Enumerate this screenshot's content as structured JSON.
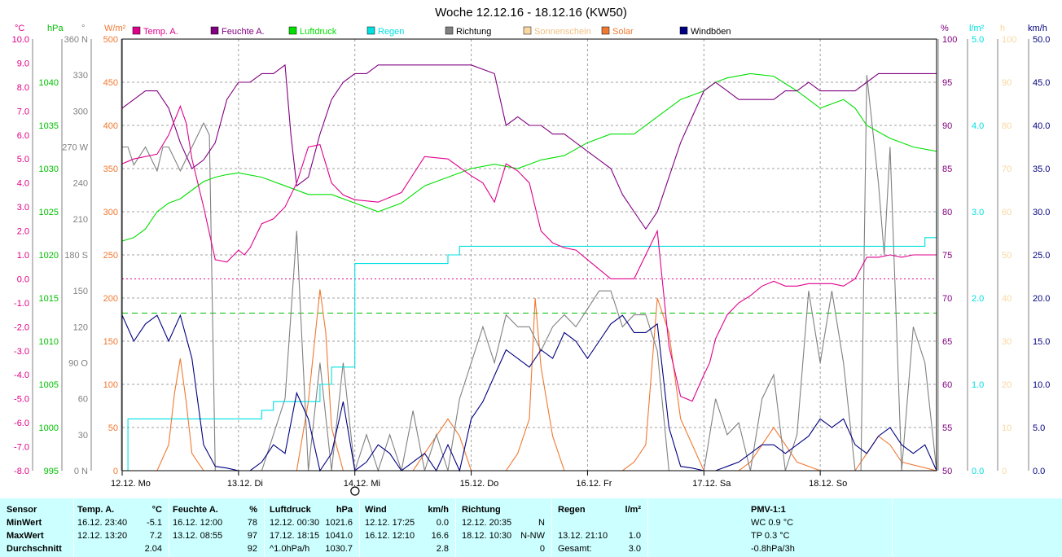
{
  "chart_data": {
    "type": "line",
    "title": "Woche 12.12.16 - 18.12.16 (KW50)",
    "x_days": [
      "12.12. Mo",
      "13.12. Di",
      "14.12. Mi",
      "15.12. Do",
      "16.12. Fr",
      "17.12. Sa",
      "18.12. So"
    ],
    "xlim_days": [
      0,
      7
    ],
    "grid": true,
    "legend": [
      {
        "name": "Temp. A.",
        "color": "#e0008c"
      },
      {
        "name": "Feuchte A.",
        "color": "#800080"
      },
      {
        "name": "Luftdruck",
        "color": "#00e000"
      },
      {
        "name": "Regen",
        "color": "#00e0e0"
      },
      {
        "name": "Richtung",
        "color": "#808080"
      },
      {
        "name": "Sonnenschein",
        "color": "#f8d8a0"
      },
      {
        "name": "Solar",
        "color": "#f07830"
      },
      {
        "name": "Windböen",
        "color": "#000080"
      }
    ],
    "axes": {
      "temp": {
        "unit": "°C",
        "color": "#e0008c",
        "min": -8,
        "max": 10,
        "ticks": [
          "10.0",
          "9.0",
          "8.0",
          "7.0",
          "6.0",
          "5.0",
          "4.0",
          "3.0",
          "2.0",
          "1.0",
          "0.0",
          "-1.0",
          "-2.0",
          "-3.0",
          "-4.0",
          "-5.0",
          "-6.0",
          "-7.0",
          "-8.0"
        ]
      },
      "pressure": {
        "unit": "hPa",
        "color": "#00c000",
        "min": 995,
        "max": 1045,
        "ticks": [
          "1040",
          "1035",
          "1030",
          "1025",
          "1020",
          "1015",
          "1010",
          "1005",
          "1000",
          "995"
        ]
      },
      "direction": {
        "unit": "°",
        "color": "#808080",
        "min": 0,
        "max": 360,
        "ticks": [
          "360 N",
          "330",
          "300",
          "270 W",
          "240",
          "210",
          "180 S",
          "150",
          "120",
          "90 O",
          "60",
          "30",
          "0 N"
        ]
      },
      "solar": {
        "unit": "W/m²",
        "color": "#f07830",
        "min": 0,
        "max": 500,
        "ticks": [
          "500",
          "450",
          "400",
          "350",
          "300",
          "250",
          "200",
          "150",
          "100",
          "50",
          "0"
        ]
      },
      "humidity": {
        "unit": "%",
        "color": "#800080",
        "min": 50,
        "max": 100,
        "ticks": [
          "100",
          "95",
          "90",
          "85",
          "80",
          "75",
          "70",
          "65",
          "60",
          "55",
          "50"
        ]
      },
      "rain": {
        "unit": "l/m²",
        "color": "#00e0e0",
        "min": 0,
        "max": 5,
        "ticks": [
          "5.0",
          "4.0",
          "3.0",
          "2.0",
          "1.0",
          "0.0"
        ]
      },
      "sunshine": {
        "unit": "h",
        "color": "#f8d8a0",
        "min": 0,
        "max": 100,
        "ticks": [
          "100",
          "90",
          "80",
          "70",
          "60",
          "50",
          "40",
          "30",
          "20",
          "10",
          "0"
        ]
      },
      "wind": {
        "unit": "km/h",
        "color": "#000080",
        "min": 0,
        "max": 50,
        "ticks": [
          "50.0",
          "45.0",
          "40.0",
          "35.0",
          "30.0",
          "25.0",
          "20.0",
          "15.0",
          "10.0",
          "5.0",
          "0.0"
        ]
      }
    },
    "reference_lines": [
      {
        "axis": "temp",
        "value": 0.0,
        "color": "#e0008c"
      },
      {
        "axis": "pressure",
        "value": 1013.25,
        "color": "#00c000"
      }
    ],
    "series": [
      {
        "name": "Temp. A.",
        "axis": "temp",
        "color": "#e0008c",
        "x": [
          0,
          0.1,
          0.3,
          0.4,
          0.5,
          0.55,
          0.6,
          0.7,
          0.8,
          0.9,
          1.0,
          1.05,
          1.1,
          1.2,
          1.3,
          1.4,
          1.5,
          1.6,
          1.7,
          1.8,
          1.9,
          2.0,
          2.2,
          2.4,
          2.6,
          2.8,
          3.0,
          3.1,
          3.2,
          3.3,
          3.4,
          3.5,
          3.55,
          3.6,
          3.7,
          3.8,
          3.9,
          4.0,
          4.2,
          4.4,
          4.5,
          4.6,
          4.7,
          4.8,
          4.9,
          5.0,
          5.05,
          5.1,
          5.2,
          5.3,
          5.4,
          5.5,
          5.6,
          5.7,
          5.8,
          5.9,
          6.0,
          6.1,
          6.2,
          6.3,
          6.4,
          6.5,
          6.6,
          6.7,
          6.8,
          6.9,
          7.0
        ],
        "values": [
          4.8,
          5.0,
          5.2,
          6.0,
          7.2,
          6.5,
          5.0,
          3.0,
          0.8,
          0.7,
          1.2,
          1.0,
          1.3,
          2.3,
          2.5,
          3.0,
          4.0,
          5.5,
          5.6,
          4.0,
          3.5,
          3.3,
          3.2,
          3.6,
          5.1,
          5.0,
          4.3,
          4.0,
          3.2,
          4.8,
          4.5,
          4.0,
          3.0,
          2.0,
          1.5,
          1.3,
          1.2,
          0.8,
          0.0,
          0.0,
          1.0,
          2.0,
          -2.8,
          -4.9,
          -5.1,
          -4.0,
          -3.5,
          -2.5,
          -1.5,
          -1.0,
          -0.7,
          -0.3,
          -0.1,
          -0.3,
          -0.3,
          -0.2,
          -0.2,
          -0.2,
          -0.3,
          0.0,
          0.9,
          0.9,
          1.0,
          0.9,
          1.0,
          1.0,
          1.0
        ]
      },
      {
        "name": "Feuchte A.",
        "axis": "humidity",
        "color": "#800080",
        "x": [
          0,
          0.1,
          0.2,
          0.3,
          0.4,
          0.5,
          0.6,
          0.7,
          0.8,
          0.9,
          1.0,
          1.1,
          1.2,
          1.3,
          1.4,
          1.45,
          1.5,
          1.6,
          1.7,
          1.8,
          1.9,
          2.0,
          2.1,
          2.2,
          2.3,
          2.5,
          3.0,
          3.2,
          3.3,
          3.4,
          3.5,
          3.6,
          3.7,
          3.8,
          3.9,
          4.0,
          4.1,
          4.2,
          4.3,
          4.4,
          4.5,
          4.6,
          4.7,
          4.8,
          4.9,
          5.0,
          5.1,
          5.2,
          5.3,
          5.4,
          5.5,
          5.6,
          5.7,
          5.8,
          5.9,
          6.0,
          6.1,
          6.2,
          6.3,
          6.4,
          6.5,
          6.6,
          6.7,
          6.8,
          7.0
        ],
        "values": [
          92,
          93,
          94,
          94,
          92,
          88,
          85,
          86,
          88,
          93,
          95,
          95,
          96,
          96,
          97,
          89,
          83,
          84,
          89,
          93,
          95,
          96,
          96,
          97,
          97,
          97,
          97,
          96,
          90,
          91,
          90,
          90,
          89,
          89,
          88,
          87,
          86,
          85,
          82,
          80,
          78,
          80,
          84,
          88,
          91,
          94,
          95,
          94,
          93,
          93,
          93,
          93,
          94,
          94,
          95,
          94,
          94,
          94,
          94,
          95,
          96,
          96,
          96,
          96,
          96
        ]
      },
      {
        "name": "Luftdruck",
        "axis": "pressure",
        "color": "#00e000",
        "x": [
          0,
          0.1,
          0.2,
          0.3,
          0.4,
          0.5,
          0.6,
          0.7,
          0.8,
          0.9,
          1.0,
          1.2,
          1.4,
          1.6,
          1.8,
          2.0,
          2.1,
          2.2,
          2.4,
          2.6,
          2.8,
          3.0,
          3.2,
          3.4,
          3.6,
          3.8,
          4.0,
          4.2,
          4.4,
          4.6,
          4.8,
          5.0,
          5.1,
          5.2,
          5.4,
          5.6,
          5.8,
          6.0,
          6.1,
          6.2,
          6.3,
          6.4,
          6.6,
          6.8,
          7.0
        ],
        "values": [
          1021.6,
          1022,
          1023,
          1025,
          1026,
          1026.5,
          1027.5,
          1028.5,
          1029,
          1029.3,
          1029.5,
          1029,
          1028,
          1027,
          1027,
          1026,
          1025.5,
          1025,
          1026,
          1028,
          1029,
          1030,
          1030.5,
          1030,
          1031,
          1031.5,
          1033,
          1034,
          1034,
          1036,
          1038,
          1039,
          1040,
          1040.5,
          1041,
          1040.7,
          1039,
          1037,
          1037.5,
          1038,
          1037,
          1035,
          1033.5,
          1032.5,
          1032
        ]
      },
      {
        "name": "Regen",
        "axis": "rain",
        "color": "#00e0e0",
        "step": true,
        "x": [
          0,
          0.05,
          1.1,
          1.2,
          1.3,
          1.4,
          1.6,
          1.7,
          1.8,
          1.95,
          2.0,
          2.3,
          2.4,
          2.8,
          2.9,
          6.0,
          6.9,
          7.0
        ],
        "values": [
          0,
          0.6,
          0.6,
          0.7,
          0.8,
          0.8,
          0.8,
          1.0,
          1.2,
          1.2,
          2.4,
          2.4,
          2.4,
          2.5,
          2.6,
          2.6,
          2.7,
          3.0
        ]
      },
      {
        "name": "Richtung",
        "axis": "direction",
        "color": "#808080",
        "x": [
          0,
          0.05,
          0.1,
          0.2,
          0.3,
          0.35,
          0.4,
          0.5,
          0.55,
          0.6,
          0.7,
          0.75,
          0.8,
          0.9,
          1.0,
          1.1,
          1.2,
          1.3,
          1.4,
          1.5,
          1.55,
          1.6,
          1.7,
          1.8,
          1.9,
          2.0,
          2.1,
          2.2,
          2.3,
          2.4,
          2.5,
          2.6,
          2.7,
          2.8,
          2.9,
          3.0,
          3.1,
          3.2,
          3.3,
          3.4,
          3.5,
          3.6,
          3.7,
          3.8,
          3.9,
          4.0,
          4.1,
          4.2,
          4.3,
          4.4,
          4.5,
          4.6,
          4.7,
          4.8,
          4.9,
          5.0,
          5.1,
          5.2,
          5.3,
          5.4,
          5.5,
          5.6,
          5.7,
          5.8,
          5.9,
          6.0,
          6.1,
          6.2,
          6.3,
          6.35,
          6.4,
          6.5,
          6.55,
          6.6,
          6.7,
          6.8,
          6.9,
          7.0
        ],
        "values": [
          270,
          270,
          255,
          270,
          250,
          270,
          270,
          250,
          260,
          270,
          290,
          280,
          0,
          0,
          0,
          0,
          0,
          30,
          60,
          200,
          100,
          0,
          90,
          0,
          90,
          0,
          30,
          0,
          30,
          0,
          50,
          0,
          30,
          0,
          60,
          90,
          120,
          90,
          130,
          120,
          120,
          100,
          120,
          130,
          120,
          135,
          150,
          150,
          120,
          130,
          130,
          100,
          0,
          0,
          0,
          0,
          60,
          30,
          40,
          0,
          60,
          80,
          0,
          30,
          150,
          90,
          150,
          90,
          0,
          0,
          330,
          240,
          180,
          270,
          0,
          120,
          90,
          0
        ]
      },
      {
        "name": "Solar",
        "axis": "solar",
        "color": "#f07830",
        "x": [
          0,
          0.3,
          0.4,
          0.45,
          0.5,
          0.55,
          0.6,
          0.7,
          1.5,
          1.6,
          1.7,
          1.75,
          1.8,
          1.9,
          2.0,
          2.3,
          2.5,
          2.6,
          2.7,
          2.8,
          2.9,
          3.0,
          3.2,
          3.3,
          3.4,
          3.5,
          3.55,
          3.6,
          3.7,
          3.8,
          4.0,
          4.3,
          4.4,
          4.5,
          4.6,
          4.7,
          4.8,
          5.0,
          5.2,
          5.3,
          5.4,
          5.5,
          5.6,
          5.7,
          5.8,
          6.0,
          6.2,
          6.3,
          6.4,
          6.5,
          6.6,
          6.7,
          7.0
        ],
        "values": [
          0,
          0,
          30,
          90,
          130,
          80,
          20,
          0,
          0,
          80,
          210,
          160,
          50,
          0,
          0,
          0,
          0,
          20,
          40,
          60,
          40,
          0,
          0,
          0,
          20,
          60,
          200,
          120,
          40,
          0,
          0,
          0,
          10,
          30,
          200,
          160,
          60,
          0,
          0,
          0,
          10,
          30,
          50,
          30,
          10,
          0,
          0,
          0,
          20,
          40,
          30,
          10,
          0
        ]
      },
      {
        "name": "Windböen",
        "axis": "wind",
        "color": "#000080",
        "x": [
          0,
          0.1,
          0.2,
          0.3,
          0.4,
          0.5,
          0.6,
          0.7,
          0.8,
          0.9,
          1.0,
          1.1,
          1.2,
          1.3,
          1.4,
          1.5,
          1.6,
          1.7,
          1.8,
          1.9,
          2.0,
          2.1,
          2.2,
          2.3,
          2.4,
          2.5,
          2.6,
          2.7,
          2.8,
          2.9,
          3.0,
          3.1,
          3.2,
          3.3,
          3.4,
          3.5,
          3.6,
          3.7,
          3.8,
          3.9,
          4.0,
          4.1,
          4.2,
          4.3,
          4.4,
          4.5,
          4.6,
          4.7,
          4.8,
          4.9,
          5.0,
          5.1,
          5.2,
          5.3,
          5.4,
          5.5,
          5.6,
          5.7,
          5.8,
          5.9,
          6.0,
          6.1,
          6.2,
          6.3,
          6.4,
          6.5,
          6.6,
          6.7,
          6.8,
          6.9,
          7.0
        ],
        "values": [
          18,
          15,
          17,
          18,
          15,
          18,
          13,
          3,
          0.5,
          0.3,
          0,
          0,
          1,
          3,
          2,
          9,
          6,
          0,
          2,
          8,
          0,
          1,
          3,
          2,
          0,
          1,
          2,
          0,
          3,
          0,
          6,
          8,
          11,
          14,
          13,
          12,
          14,
          13,
          16,
          15,
          13,
          15,
          17,
          18,
          16,
          16,
          17,
          5,
          0.5,
          0.3,
          0,
          0,
          0.5,
          1,
          2,
          3,
          3,
          2,
          3,
          4,
          6,
          5,
          6,
          3,
          2,
          4,
          5,
          3,
          2,
          3,
          0
        ]
      }
    ]
  },
  "table": {
    "headers": {
      "sensor": "Sensor",
      "temp": "Temp. A.",
      "temp_unit": "°C",
      "hum": "Feuchte A.",
      "hum_unit": "%",
      "press": "Luftdruck",
      "press_unit": "hPa",
      "wind": "Wind",
      "wind_unit": "km/h",
      "dir": "Richtung",
      "rain": "Regen",
      "rain_unit": "l/m²",
      "pmv": "PMV-1:1"
    },
    "row_labels": {
      "min": "MinWert",
      "max": "MaxWert",
      "avg": "Durchschnitt"
    },
    "temp": {
      "min_time": "16.12.  23:40",
      "min_val": "-5.1",
      "max_time": "12.12.  13:20",
      "max_val": "7.2",
      "avg_val": "2.04"
    },
    "hum": {
      "min_time": "16.12.  12:00",
      "min_val": "78",
      "max_time": "13.12.  08:55",
      "max_val": "97",
      "avg_val": "92"
    },
    "press": {
      "min_time": "12.12.  00:30",
      "min_val": "1021.6",
      "max_time": "17.12.  18:15",
      "max_val": "1041.0",
      "avg_time": "^1.0hPa/h",
      "avg_val": "1030.7"
    },
    "wind": {
      "min_time": "12.12.  17:25",
      "min_val": "0.0",
      "max_time": "16.12.  12:10",
      "max_val": "16.6",
      "avg_val": "2.8"
    },
    "dir": {
      "min_time": "12.12.  20:35",
      "min_val": "N",
      "max_time": "18.12.  10:30",
      "max_val": "N-NW",
      "avg_val": "0"
    },
    "rain": {
      "max_time": "13.12.  21:10",
      "max_val": "1.0",
      "total_label": "Gesamt:",
      "total_val": "3.0"
    },
    "pmv": {
      "wc": "WC 0.9 °C",
      "tp": "TP 0.3 °C",
      "trend": "-0.8hPa/3h"
    }
  }
}
